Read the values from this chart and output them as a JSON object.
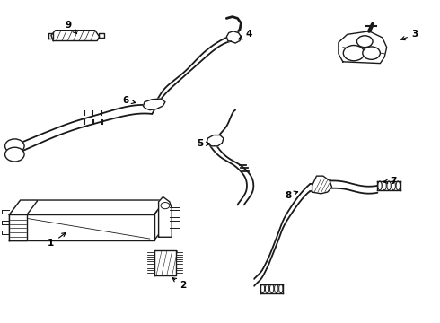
{
  "background_color": "#ffffff",
  "line_color": "#1a1a1a",
  "figsize": [
    4.9,
    3.6
  ],
  "dpi": 100,
  "labels": {
    "1": {
      "text": [
        0.115,
        0.245
      ],
      "arrow": [
        0.155,
        0.285
      ]
    },
    "2": {
      "text": [
        0.415,
        0.115
      ],
      "arrow": [
        0.385,
        0.145
      ]
    },
    "3": {
      "text": [
        0.945,
        0.895
      ],
      "arrow": [
        0.905,
        0.875
      ]
    },
    "4": {
      "text": [
        0.565,
        0.895
      ],
      "arrow": [
        0.535,
        0.875
      ]
    },
    "5": {
      "text": [
        0.455,
        0.555
      ],
      "arrow": [
        0.485,
        0.555
      ]
    },
    "6": {
      "text": [
        0.285,
        0.69
      ],
      "arrow": [
        0.315,
        0.68
      ]
    },
    "7": {
      "text": [
        0.895,
        0.44
      ],
      "arrow": [
        0.865,
        0.435
      ]
    },
    "8": {
      "text": [
        0.655,
        0.395
      ],
      "arrow": [
        0.685,
        0.41
      ]
    },
    "9": {
      "text": [
        0.155,
        0.925
      ],
      "arrow": [
        0.175,
        0.895
      ]
    }
  }
}
